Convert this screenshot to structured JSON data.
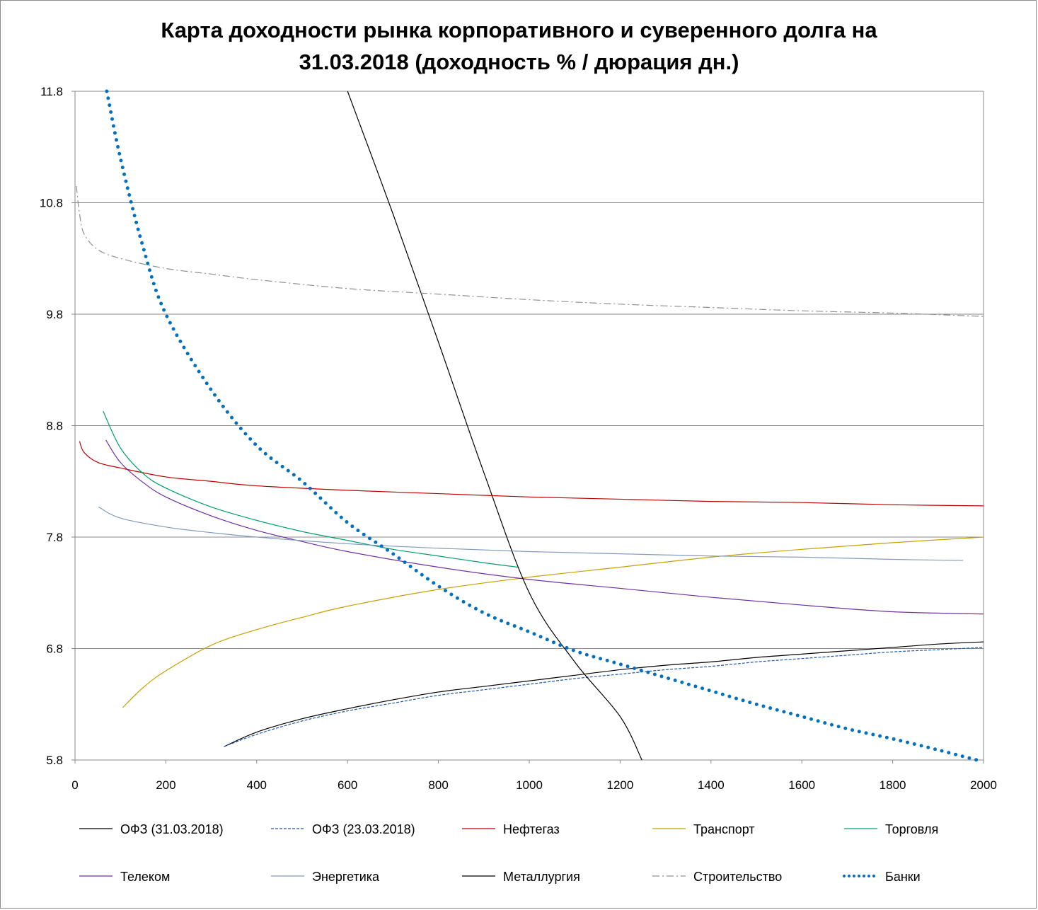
{
  "chart_data": {
    "type": "line",
    "title_line1": "Карта доходности рынка корпоративного и суверенного долга на",
    "title_line2": "31.03.2018 (доходность % / дюрация дн.)",
    "xlim": [
      0,
      2000
    ],
    "ylim": [
      5.8,
      11.8
    ],
    "x_ticks": [
      "0",
      "200",
      "400",
      "600",
      "800",
      "1000",
      "1200",
      "1400",
      "1600",
      "1800",
      "2000"
    ],
    "y_ticks": [
      "5.8",
      "6.8",
      "7.8",
      "8.8",
      "9.8",
      "10.8",
      "11.8"
    ],
    "grid": true,
    "legend_position": "bottom",
    "series": [
      {
        "name": "ОФЗ (31.03.2018)",
        "color": "#000000",
        "style": "solid",
        "x": [
          328,
          400,
          500,
          600,
          700,
          800,
          900,
          1000,
          1100,
          1200,
          1300,
          1400,
          1500,
          1600,
          1700,
          1800,
          1900,
          2000
        ],
        "y": [
          5.92,
          6.05,
          6.17,
          6.26,
          6.34,
          6.41,
          6.46,
          6.51,
          6.56,
          6.61,
          6.65,
          6.68,
          6.72,
          6.75,
          6.78,
          6.81,
          6.84,
          6.86
        ]
      },
      {
        "name": "ОФЗ (23.03.2018)",
        "color": "#1f5aa6",
        "style": "dashed",
        "x": [
          328,
          400,
          500,
          600,
          700,
          800,
          900,
          1000,
          1100,
          1200,
          1300,
          1400,
          1500,
          1600,
          1700,
          1800,
          1900,
          2000
        ],
        "y": [
          5.92,
          6.03,
          6.15,
          6.24,
          6.31,
          6.38,
          6.43,
          6.48,
          6.53,
          6.57,
          6.61,
          6.64,
          6.68,
          6.71,
          6.74,
          6.77,
          6.79,
          6.81
        ]
      },
      {
        "name": "Нефтегаз",
        "color": "#c00000",
        "style": "solid",
        "x": [
          10,
          20,
          50,
          100,
          200,
          300,
          400,
          600,
          800,
          1000,
          1200,
          1400,
          1600,
          1800,
          2000
        ],
        "y": [
          8.66,
          8.56,
          8.47,
          8.42,
          8.34,
          8.3,
          8.26,
          8.22,
          8.19,
          8.16,
          8.14,
          8.12,
          8.11,
          8.09,
          8.08
        ]
      },
      {
        "name": "Транспорт",
        "color": "#c8a000",
        "style": "solid",
        "x": [
          105,
          150,
          200,
          300,
          400,
          500,
          600,
          800,
          1000,
          1200,
          1400,
          1600,
          1800,
          2000
        ],
        "y": [
          6.27,
          6.45,
          6.6,
          6.83,
          6.97,
          7.08,
          7.18,
          7.33,
          7.44,
          7.53,
          7.62,
          7.69,
          7.75,
          7.8
        ]
      },
      {
        "name": "Торговля",
        "color": "#00a070",
        "style": "solid",
        "x": [
          62,
          100,
          150,
          200,
          300,
          400,
          500,
          600,
          700,
          800,
          900,
          975
        ],
        "y": [
          8.93,
          8.6,
          8.37,
          8.24,
          8.07,
          7.95,
          7.85,
          7.77,
          7.69,
          7.63,
          7.57,
          7.53
        ]
      },
      {
        "name": "Телеком",
        "color": "#7030a0",
        "style": "solid",
        "x": [
          68,
          100,
          150,
          200,
          300,
          400,
          500,
          600,
          800,
          1000,
          1200,
          1400,
          1600,
          1800,
          2000
        ],
        "y": [
          8.67,
          8.47,
          8.29,
          8.16,
          7.99,
          7.86,
          7.76,
          7.67,
          7.53,
          7.42,
          7.34,
          7.26,
          7.19,
          7.13,
          7.11
        ]
      },
      {
        "name": "Энергетика",
        "color": "#7f9bbd",
        "style": "solid",
        "x": [
          52,
          100,
          200,
          300,
          400,
          600,
          800,
          1000,
          1200,
          1400,
          1600,
          1800,
          1955
        ],
        "y": [
          8.07,
          7.97,
          7.89,
          7.84,
          7.8,
          7.74,
          7.7,
          7.67,
          7.65,
          7.63,
          7.62,
          7.6,
          7.59
        ]
      },
      {
        "name": "Металлургия",
        "color": "#000000",
        "style": "solid",
        "x": [
          600,
          700,
          800,
          900,
          1000,
          1100,
          1200,
          1248
        ],
        "y": [
          11.8,
          10.7,
          9.55,
          8.38,
          7.3,
          6.68,
          6.19,
          5.8
        ]
      },
      {
        "name": "Строительство",
        "color": "#909090",
        "style": "dashdot",
        "x": [
          3,
          10,
          20,
          50,
          100,
          200,
          300,
          400,
          600,
          800,
          1000,
          1200,
          1400,
          1600,
          1800,
          2000
        ],
        "y": [
          10.95,
          10.7,
          10.52,
          10.38,
          10.3,
          10.21,
          10.16,
          10.11,
          10.03,
          9.98,
          9.93,
          9.89,
          9.86,
          9.83,
          9.81,
          9.78
        ]
      },
      {
        "name": "Банки",
        "color": "#0070c0",
        "style": "dotted",
        "x": [
          70,
          100,
          150,
          200,
          300,
          400,
          500,
          600,
          700,
          800,
          900,
          1000,
          1100,
          1200,
          1300,
          1400,
          1500,
          1600,
          1700,
          1800,
          1900,
          1985
        ],
        "y": [
          11.8,
          11.2,
          10.4,
          9.8,
          9.12,
          8.62,
          8.3,
          7.93,
          7.65,
          7.36,
          7.12,
          6.95,
          6.78,
          6.66,
          6.54,
          6.42,
          6.3,
          6.19,
          6.08,
          5.99,
          5.89,
          5.8
        ]
      }
    ]
  }
}
